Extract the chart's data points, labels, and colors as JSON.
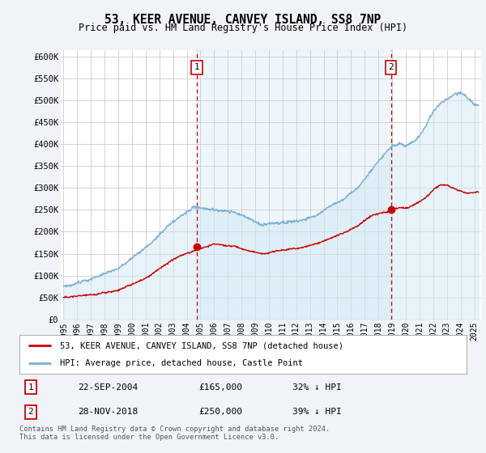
{
  "title": "53, KEER AVENUE, CANVEY ISLAND, SS8 7NP",
  "subtitle": "Price paid vs. HM Land Registry's House Price Index (HPI)",
  "ylabel_ticks": [
    "£0",
    "£50K",
    "£100K",
    "£150K",
    "£200K",
    "£250K",
    "£300K",
    "£350K",
    "£400K",
    "£450K",
    "£500K",
    "£550K",
    "£600K"
  ],
  "ytick_values": [
    0,
    50000,
    100000,
    150000,
    200000,
    250000,
    300000,
    350000,
    400000,
    450000,
    500000,
    550000,
    600000
  ],
  "ylim": [
    0,
    615000
  ],
  "xlim_start": 1994.8,
  "xlim_end": 2025.5,
  "sale1_date": 2004.73,
  "sale1_price": 165000,
  "sale1_label": "1",
  "sale2_date": 2018.91,
  "sale2_price": 250000,
  "sale2_label": "2",
  "hpi_color": "#7ab0d4",
  "hpi_fill_color": "#d0e8f5",
  "price_color": "#cc0000",
  "dashed_color": "#cc0000",
  "background_color": "#f0f4f8",
  "plot_bg_color": "#ffffff",
  "grid_color": "#cccccc",
  "legend_label1": "53, KEER AVENUE, CANVEY ISLAND, SS8 7NP (detached house)",
  "legend_label2": "HPI: Average price, detached house, Castle Point",
  "footnote1": "Contains HM Land Registry data © Crown copyright and database right 2024.",
  "footnote2": "This data is licensed under the Open Government Licence v3.0.",
  "table_row1": [
    "1",
    "22-SEP-2004",
    "£165,000",
    "32% ↓ HPI"
  ],
  "table_row2": [
    "2",
    "28-NOV-2018",
    "£250,000",
    "39% ↓ HPI"
  ]
}
